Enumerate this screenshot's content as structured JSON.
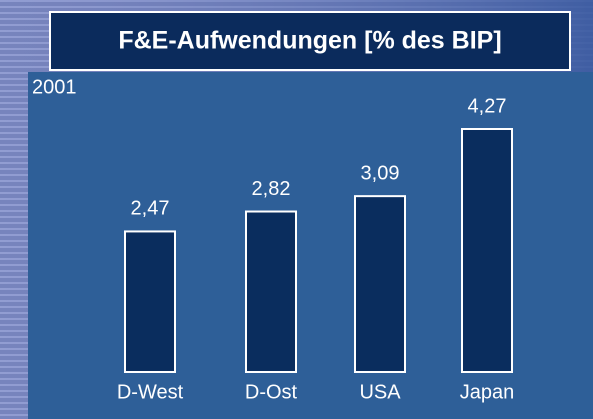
{
  "chart_data": {
    "type": "bar",
    "title": "F&E-Aufwendungen [% des BIP]",
    "subtitle": "2001",
    "categories": [
      "D-West",
      "D-Ost",
      "USA",
      "Japan"
    ],
    "values": [
      2.47,
      2.82,
      3.09,
      4.27
    ],
    "value_labels": [
      "2,47",
      "2,82",
      "3,09",
      "4,27"
    ],
    "color": "#0a2d5e"
  }
}
